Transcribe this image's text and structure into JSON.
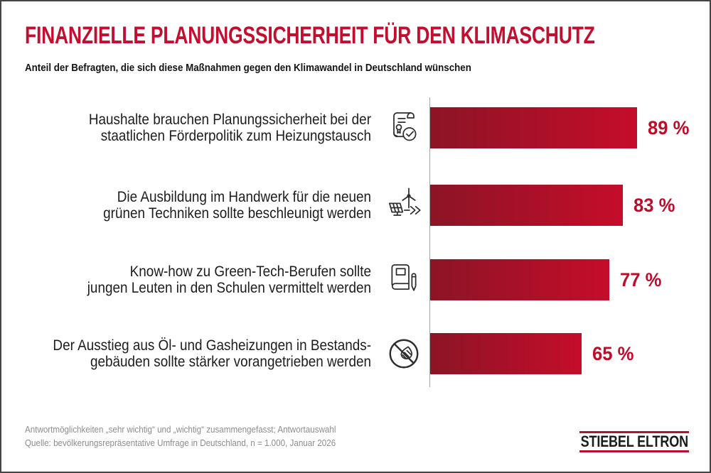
{
  "header": {
    "title": "FINANZIELLE PLANUNGSSICHERHEIT FÜR DEN KLIMASCHUTZ",
    "subtitle": "Anteil der Befragten, die sich diese Maßnahmen gegen den Klimawandel in Deutschland wünschen"
  },
  "chart_data": {
    "type": "bar",
    "orientation": "horizontal",
    "title": "FINANZIELLE PLANUNGSSICHERHEIT FÜR DEN KLIMASCHUTZ",
    "subtitle": "Anteil der Befragten, die sich diese Maßnahmen gegen den Klimawandel in Deutschland wünschen",
    "categories": [
      "Haushalte brauchen Planungssicherheit bei der staatlichen Förderpolitik zum Heizungstausch",
      "Die Ausbildung im Handwerk für die neuen grünen Techniken sollte beschleunigt werden",
      "Know-how zu Green-Tech-Berufen sollte jungen Leuten in den Schulen vermittelt werden",
      "Der Ausstieg aus Öl- und Gasheizungen in Bestandsgebäuden sollte stärker vorangetrieben werden"
    ],
    "values": [
      89,
      83,
      77,
      65
    ],
    "value_labels": [
      "89 %",
      "83 %",
      "77 %",
      "65 %"
    ],
    "unit": "%",
    "xlim": [
      0,
      100
    ],
    "grid": false,
    "legend": false,
    "bar_gradient": [
      "#8c1425",
      "#c50d2a"
    ]
  },
  "rows": [
    {
      "label_line1": "Haushalte brauchen Planungssicherheit bei der",
      "label_line2": "staatlichen Förderpolitik zum Heizungstausch",
      "icon": "certificate-check",
      "value_label": "89 %"
    },
    {
      "label_line1": "Die Ausbildung im Handwerk für die neuen",
      "label_line2": "grünen Techniken sollte beschleunigt werden",
      "icon": "green-tech-acceleration",
      "value_label": "83 %"
    },
    {
      "label_line1": "Know-how zu Green-Tech-Berufen sollte",
      "label_line2": "jungen Leuten in den Schulen vermittelt werden",
      "icon": "book-pencil",
      "value_label": "77 %"
    },
    {
      "label_line1": "Der Ausstieg aus Öl- und Gasheizungen in Bestands-",
      "label_line2": "gebäuden sollte stärker vorangetrieben werden",
      "icon": "no-oil-gas-heating",
      "value_label": "65 %"
    }
  ],
  "footer": {
    "note": "Antwortmöglichkeiten „sehr wichtig“ und „wichtig“ zusammengefasst; Antwortauswahl",
    "source": "Quelle: bevölkerungsrepräsentative Umfrage in Deutschland, n = 1.000, Januar 2026"
  },
  "logo": {
    "text": "STIEBEL ELTRON"
  },
  "colors": {
    "title_red": "#c20e2f",
    "accent_red": "#c00c28",
    "bar_dark": "#8c1425",
    "bar_bright": "#c50d2a",
    "logo_red": "#b5122d",
    "text_dark": "#1d1d1d",
    "footer_gray": "#8d8d8d"
  }
}
